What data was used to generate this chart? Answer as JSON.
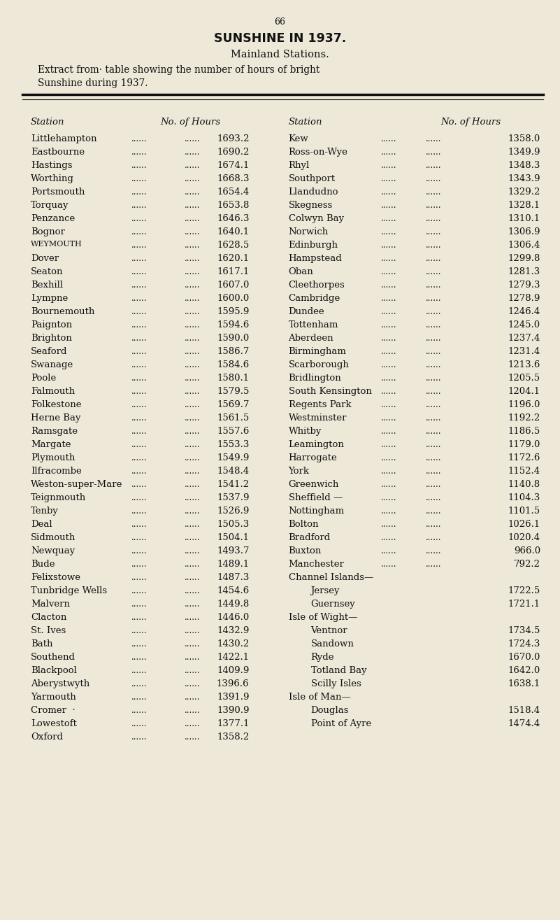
{
  "page_number": "66",
  "title": "SUNSHINE IN 1937.",
  "subtitle": "Mainland Stations.",
  "extract_line1": "Extract from· table showing the number of hours of bright",
  "extract_line2": "Sunshine during 1937.",
  "col_headers": [
    "Station",
    "No. of Hours",
    "Station",
    "No. of Hours"
  ],
  "rows": [
    [
      "Littlehampton",
      "1693.2",
      "Kew",
      "1358.0"
    ],
    [
      "Eastbourne",
      "1690.2",
      "Ross-on-Wye",
      "1349.9"
    ],
    [
      "Hastings",
      "1674.1",
      "Rhyl",
      "1348.3"
    ],
    [
      "Worthing",
      "1668.3",
      "Southport",
      "1343.9"
    ],
    [
      "Portsmouth",
      "1654.4",
      "Llandudno",
      "1329.2"
    ],
    [
      "Torquay",
      "1653.8",
      "Skegness",
      "1328.1"
    ],
    [
      "Penzance",
      "1646.3",
      "Colwyn Bay",
      "1310.1"
    ],
    [
      "Bognor",
      "1640.1",
      "Norwich",
      "1306.9"
    ],
    [
      "Weymouth",
      "1628.5",
      "Edinburgh",
      "1306.4"
    ],
    [
      "Dover",
      "1620.1",
      "Hampstead",
      "1299.8"
    ],
    [
      "Seaton",
      "1617.1",
      "Oban",
      "1281.3"
    ],
    [
      "Bexhill",
      "1607.0",
      "Cleethorpes",
      "1279.3"
    ],
    [
      "Lympne",
      "1600.0",
      "Cambridge",
      "1278.9"
    ],
    [
      "Bournemouth",
      "1595.9",
      "Dundee",
      "1246.4"
    ],
    [
      "Paignton",
      "1594.6",
      "Tottenham",
      "1245.0"
    ],
    [
      "Brighton",
      "1590.0",
      "Aberdeen",
      "1237.4"
    ],
    [
      "Seaford",
      "1586.7",
      "Birmingham",
      "1231.4"
    ],
    [
      "Swanage",
      "1584.6",
      "Scarborough",
      "1213.6"
    ],
    [
      "Poole",
      "1580.1",
      "Bridlington",
      "1205.5"
    ],
    [
      "Falmouth",
      "1579.5",
      "South Kensington",
      "1204.1"
    ],
    [
      "Folkestone",
      "1569.7",
      "Regents Park",
      "1196.0"
    ],
    [
      "Herne Bay",
      "1561.5",
      "Westminster",
      "1192.2"
    ],
    [
      "Ramsgate",
      "1557.6",
      "Whitby",
      "1186.5"
    ],
    [
      "Margate",
      "1553.3",
      "Leamington",
      "1179.0"
    ],
    [
      "Plymouth",
      "1549.9",
      "Harrogate",
      "1172.6"
    ],
    [
      "Ilfracombe",
      "1548.4",
      "York",
      "1152.4"
    ],
    [
      "Weston-super-Mare",
      "1541.2",
      "Greenwich",
      "1140.8"
    ],
    [
      "Teignmouth",
      "1537.9",
      "Sheffield —",
      "1104.3"
    ],
    [
      "Tenby",
      "1526.9",
      "Nottingham",
      "1101.5"
    ],
    [
      "Deal",
      "1505.3",
      "Bolton",
      "1026.1"
    ],
    [
      "Sidmouth",
      "1504.1",
      "Bradford",
      "1020.4"
    ],
    [
      "Newquay",
      "1493.7",
      "Buxton",
      "966.0"
    ],
    [
      "Bude",
      "1489.1",
      "Manchester",
      "792.2"
    ],
    [
      "Felixstowe",
      "1487.3",
      "Channel Islands—",
      ""
    ],
    [
      "Tunbridge Wells",
      "1454.6",
      "Jersey",
      "1722.5"
    ],
    [
      "Malvern",
      "1449.8",
      "Guernsey",
      "1721.1"
    ],
    [
      "Clacton",
      "1446.0",
      "Isle of Wight—",
      ""
    ],
    [
      "St. Ives",
      "1432.9",
      "Ventnor",
      "1734.5"
    ],
    [
      "Bath",
      "1430.2",
      "Sandown",
      "1724.3"
    ],
    [
      "Southend",
      "1422.1",
      "Ryde",
      "1670.0"
    ],
    [
      "Blackpool",
      "1409.9",
      "Totland Bay",
      "1642.0"
    ],
    [
      "Aberystwyth",
      "1396.6",
      "Scilly Isles",
      "1638.1"
    ],
    [
      "Yarmouth",
      "1391.9",
      "Isle of Man—",
      ""
    ],
    [
      "Cromer  ·",
      "1390.9",
      "Douglas",
      "1518.4"
    ],
    [
      "Lowestoft",
      "1377.1",
      "Point of Ayre",
      "1474.4"
    ],
    [
      "Oxford",
      "1358.2",
      "",
      ""
    ]
  ],
  "smallcaps": [
    "Weymouth"
  ],
  "section_headers_right": [
    "Channel Islands—",
    "Isle of Wight—",
    "Isle of Man—"
  ],
  "indented_right": [
    "Jersey",
    "Guernsey",
    "Ventnor",
    "Sandown",
    "Ryde",
    "Totland Bay",
    "Scilly Isles",
    "Douglas",
    "Point of Ayre"
  ],
  "bg_color": "#ede8d8",
  "text_color": "#111111",
  "dots": "......"
}
